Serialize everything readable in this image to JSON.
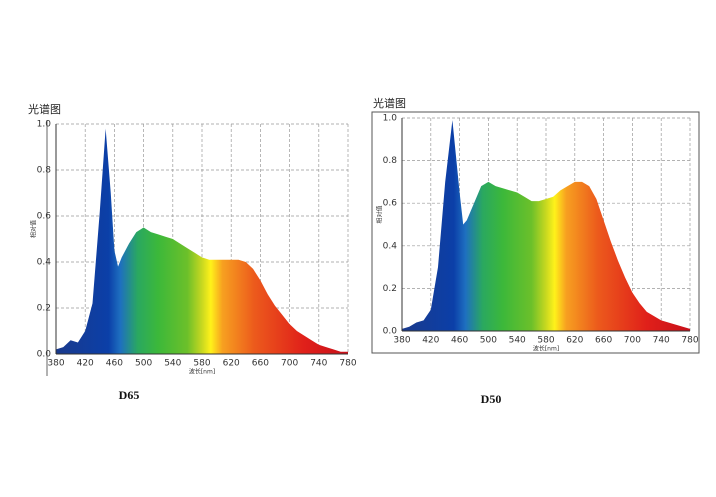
{
  "chart_data": [
    {
      "type": "area",
      "title": "光谱图",
      "xlabel": "波长[nm]",
      "ylabel": "相对值",
      "caption": "D65",
      "x": [
        380,
        390,
        400,
        410,
        420,
        430,
        440,
        448,
        455,
        460,
        465,
        470,
        480,
        490,
        500,
        510,
        520,
        530,
        540,
        550,
        560,
        570,
        580,
        590,
        600,
        610,
        620,
        630,
        640,
        650,
        660,
        670,
        680,
        690,
        700,
        710,
        720,
        730,
        740,
        750,
        760,
        770,
        780
      ],
      "values": [
        0.02,
        0.03,
        0.06,
        0.05,
        0.1,
        0.22,
        0.62,
        0.98,
        0.7,
        0.45,
        0.38,
        0.42,
        0.48,
        0.53,
        0.55,
        0.53,
        0.52,
        0.51,
        0.5,
        0.48,
        0.46,
        0.44,
        0.42,
        0.41,
        0.41,
        0.41,
        0.41,
        0.41,
        0.4,
        0.37,
        0.32,
        0.26,
        0.21,
        0.17,
        0.13,
        0.1,
        0.08,
        0.06,
        0.04,
        0.03,
        0.02,
        0.01,
        0.01
      ],
      "xlim": [
        380,
        780
      ],
      "xticks": [
        380,
        420,
        460,
        500,
        540,
        580,
        620,
        660,
        700,
        740,
        780
      ],
      "ylim": [
        0,
        1
      ],
      "yticks": [
        {
          "value": 0,
          "label": "0.0"
        },
        0.2,
        0.4,
        0.6,
        0.8,
        {
          "value": 1,
          "label": "1.0"
        }
      ],
      "grid": true
    },
    {
      "type": "area",
      "title": "光谱图",
      "xlabel": "波长[nm]",
      "ylabel": "相对值",
      "caption": "D50",
      "x": [
        380,
        390,
        400,
        410,
        420,
        430,
        440,
        450,
        460,
        465,
        470,
        480,
        490,
        500,
        510,
        520,
        530,
        540,
        550,
        560,
        570,
        580,
        590,
        600,
        610,
        620,
        630,
        640,
        650,
        660,
        670,
        680,
        690,
        700,
        710,
        720,
        730,
        740,
        750,
        760,
        770,
        780
      ],
      "values": [
        0.01,
        0.02,
        0.04,
        0.05,
        0.1,
        0.3,
        0.7,
        0.99,
        0.65,
        0.5,
        0.52,
        0.6,
        0.68,
        0.7,
        0.68,
        0.67,
        0.66,
        0.65,
        0.63,
        0.61,
        0.61,
        0.62,
        0.63,
        0.66,
        0.68,
        0.7,
        0.7,
        0.68,
        0.62,
        0.52,
        0.42,
        0.33,
        0.25,
        0.18,
        0.13,
        0.09,
        0.07,
        0.05,
        0.04,
        0.03,
        0.02,
        0.01
      ],
      "xlim": [
        380,
        780
      ],
      "xticks": [
        380,
        420,
        460,
        500,
        540,
        580,
        620,
        660,
        700,
        740,
        780
      ],
      "ylim": [
        0,
        1
      ],
      "yticks": [
        {
          "value": 0,
          "label": "0.0"
        },
        0.2,
        0.4,
        0.6,
        0.8,
        {
          "value": 1,
          "label": "1.0"
        }
      ],
      "grid": true
    }
  ]
}
